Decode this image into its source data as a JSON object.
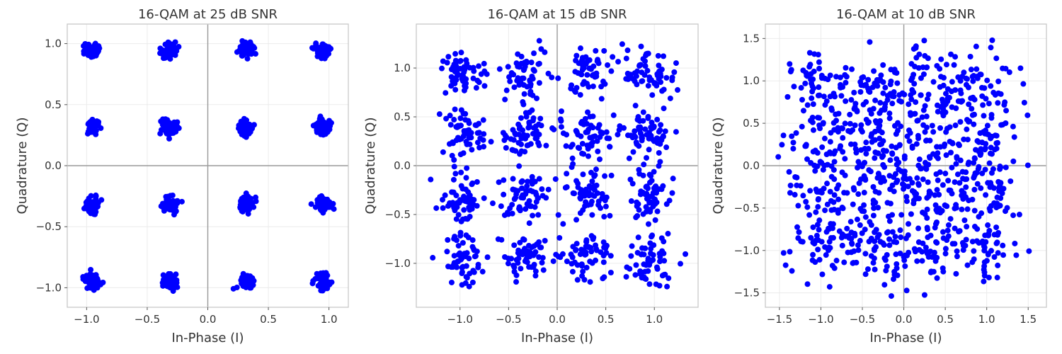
{
  "chart_data": [
    {
      "type": "scatter",
      "title": "16-QAM at 25 dB SNR",
      "xlabel": "In-Phase (I)",
      "ylabel": "Quadrature (Q)",
      "xlim": [
        -1.16,
        1.16
      ],
      "ylim": [
        -1.16,
        1.16
      ],
      "xticks": [
        -1.0,
        -0.5,
        0.0,
        0.5,
        1.0
      ],
      "yticks": [
        -1.0,
        -0.5,
        0.0,
        0.5,
        1.0
      ],
      "xtick_labels": [
        "−1.0",
        "−0.5",
        "0.0",
        "0.5",
        "1.0"
      ],
      "ytick_labels": [
        "−1.0",
        "−0.5",
        "0.0",
        "0.5",
        "1.0"
      ],
      "constellation": [
        -0.949,
        -0.316,
        0.316,
        0.949
      ],
      "noise_std": 0.032,
      "points_per_symbol": 60,
      "marker_color": "#0000ff",
      "grid": true,
      "reference_lines": [
        0,
        0
      ]
    },
    {
      "type": "scatter",
      "title": "16-QAM at 15 dB SNR",
      "xlabel": "In-Phase (I)",
      "ylabel": "Quadrature (Q)",
      "xlim": [
        -1.45,
        1.45
      ],
      "ylim": [
        -1.45,
        1.45
      ],
      "xticks": [
        -1.0,
        -0.5,
        0.0,
        0.5,
        1.0
      ],
      "yticks": [
        -1.0,
        -0.5,
        0.0,
        0.5,
        1.0
      ],
      "xtick_labels": [
        "−1.0",
        "−0.5",
        "0.0",
        "0.5",
        "1.0"
      ],
      "ytick_labels": [
        "−1.0",
        "−0.5",
        "0.0",
        "0.5",
        "1.0"
      ],
      "constellation": [
        -0.949,
        -0.316,
        0.316,
        0.949
      ],
      "noise_std": 0.125,
      "points_per_symbol": 60,
      "marker_color": "#0000ff",
      "grid": true,
      "reference_lines": [
        0,
        0
      ]
    },
    {
      "type": "scatter",
      "title": "16-QAM at 10 dB SNR",
      "xlabel": "In-Phase (I)",
      "ylabel": "Quadrature (Q)",
      "xlim": [
        -1.67,
        1.72
      ],
      "ylim": [
        -1.67,
        1.67
      ],
      "xticks": [
        -1.5,
        -1.0,
        -0.5,
        0.0,
        0.5,
        1.0,
        1.5
      ],
      "yticks": [
        -1.5,
        -1.0,
        -0.5,
        0.0,
        0.5,
        1.0,
        1.5
      ],
      "xtick_labels": [
        "−1.5",
        "−1.0",
        "−0.5",
        "0.0",
        "0.5",
        "1.0",
        "1.5"
      ],
      "ytick_labels": [
        "−1.5",
        "−1.0",
        "−0.5",
        "0.0",
        "0.5",
        "1.0",
        "1.5"
      ],
      "constellation": [
        -0.949,
        -0.316,
        0.316,
        0.949
      ],
      "noise_std": 0.224,
      "points_per_symbol": 60,
      "marker_color": "#0000ff",
      "grid": true,
      "reference_lines": [
        0,
        0
      ]
    }
  ]
}
